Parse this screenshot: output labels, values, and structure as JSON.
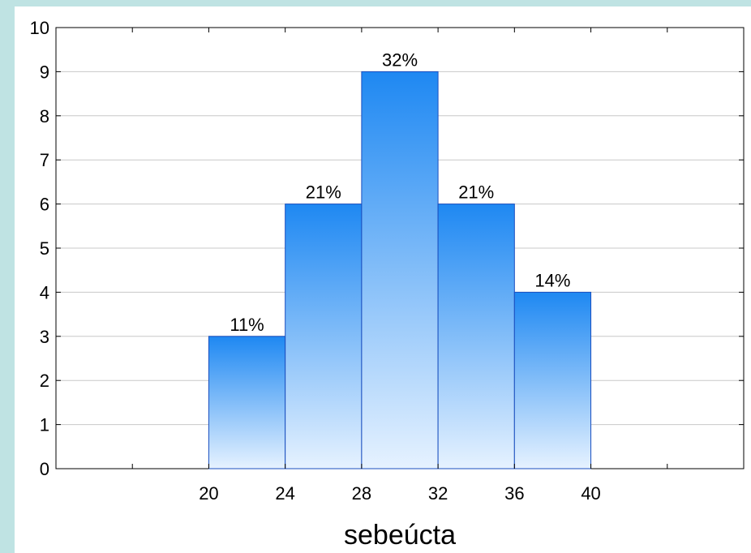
{
  "colors": {
    "page_background": "#bfe3e3",
    "plot_background": "#ffffff",
    "bar_fill_top": "#1e88f2",
    "bar_fill_bottom": "#e6f2ff",
    "bar_stroke": "#1a4fbf",
    "grid": "#c8c8c8"
  },
  "chart_data": {
    "type": "bar",
    "variant": "histogram",
    "title": "",
    "xlabel": "sebeúcta",
    "ylabel": "",
    "xlim": [
      12,
      48
    ],
    "ylim": [
      0,
      10
    ],
    "x_ticks": [
      20,
      24,
      28,
      32,
      36,
      40
    ],
    "y_ticks": [
      0,
      1,
      2,
      3,
      4,
      5,
      6,
      7,
      8,
      9,
      10
    ],
    "grid": true,
    "bins": [
      {
        "start": 20,
        "end": 24,
        "value": 3,
        "label": "11%"
      },
      {
        "start": 24,
        "end": 28,
        "value": 6,
        "label": "21%"
      },
      {
        "start": 28,
        "end": 32,
        "value": 9,
        "label": "32%"
      },
      {
        "start": 32,
        "end": 36,
        "value": 6,
        "label": "21%"
      },
      {
        "start": 36,
        "end": 40,
        "value": 4,
        "label": "14%"
      }
    ]
  }
}
